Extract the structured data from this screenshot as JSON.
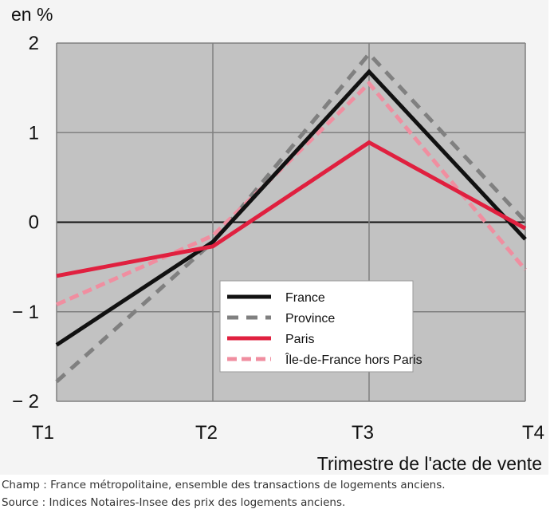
{
  "chart_data": {
    "type": "line",
    "ylabel": "en %",
    "xlabel": "Trimestre de l'acte de vente",
    "categories": [
      "T1",
      "T2",
      "T3",
      "T4"
    ],
    "ylim": [
      -2,
      2
    ],
    "yticks": [
      {
        "value": 2,
        "label": "2"
      },
      {
        "value": 1,
        "label": "1"
      },
      {
        "value": 0,
        "label": "0"
      },
      {
        "value": -1,
        "label": "− 1"
      },
      {
        "value": -2,
        "label": "− 2"
      }
    ],
    "grid": true,
    "legend_position": "bottom-right",
    "series": [
      {
        "name": "France",
        "values": [
          -1.37,
          -0.22,
          1.68,
          -0.19
        ],
        "color": "#111111",
        "style": "solid"
      },
      {
        "name": "Province",
        "values": [
          -1.78,
          -0.22,
          1.88,
          0.01
        ],
        "color": "#808080",
        "style": "dashed"
      },
      {
        "name": "Paris",
        "values": [
          -0.6,
          -0.27,
          0.89,
          -0.07
        ],
        "color": "#e0203f",
        "style": "solid"
      },
      {
        "name": "Île-de-France hors Paris",
        "values": [
          -0.92,
          -0.15,
          1.55,
          -0.53
        ],
        "color": "#f08ea0",
        "style": "dashed"
      }
    ]
  },
  "notes": {
    "champ": "Champ : France métropolitaine, ensemble des transactions de logements anciens.",
    "source": "Source : Indices Notaires-Insee des prix des logements anciens."
  },
  "colors": {
    "plot_background": "#c2c2c2",
    "figure_background": "#f4f4f4",
    "gridline": "#808080"
  }
}
